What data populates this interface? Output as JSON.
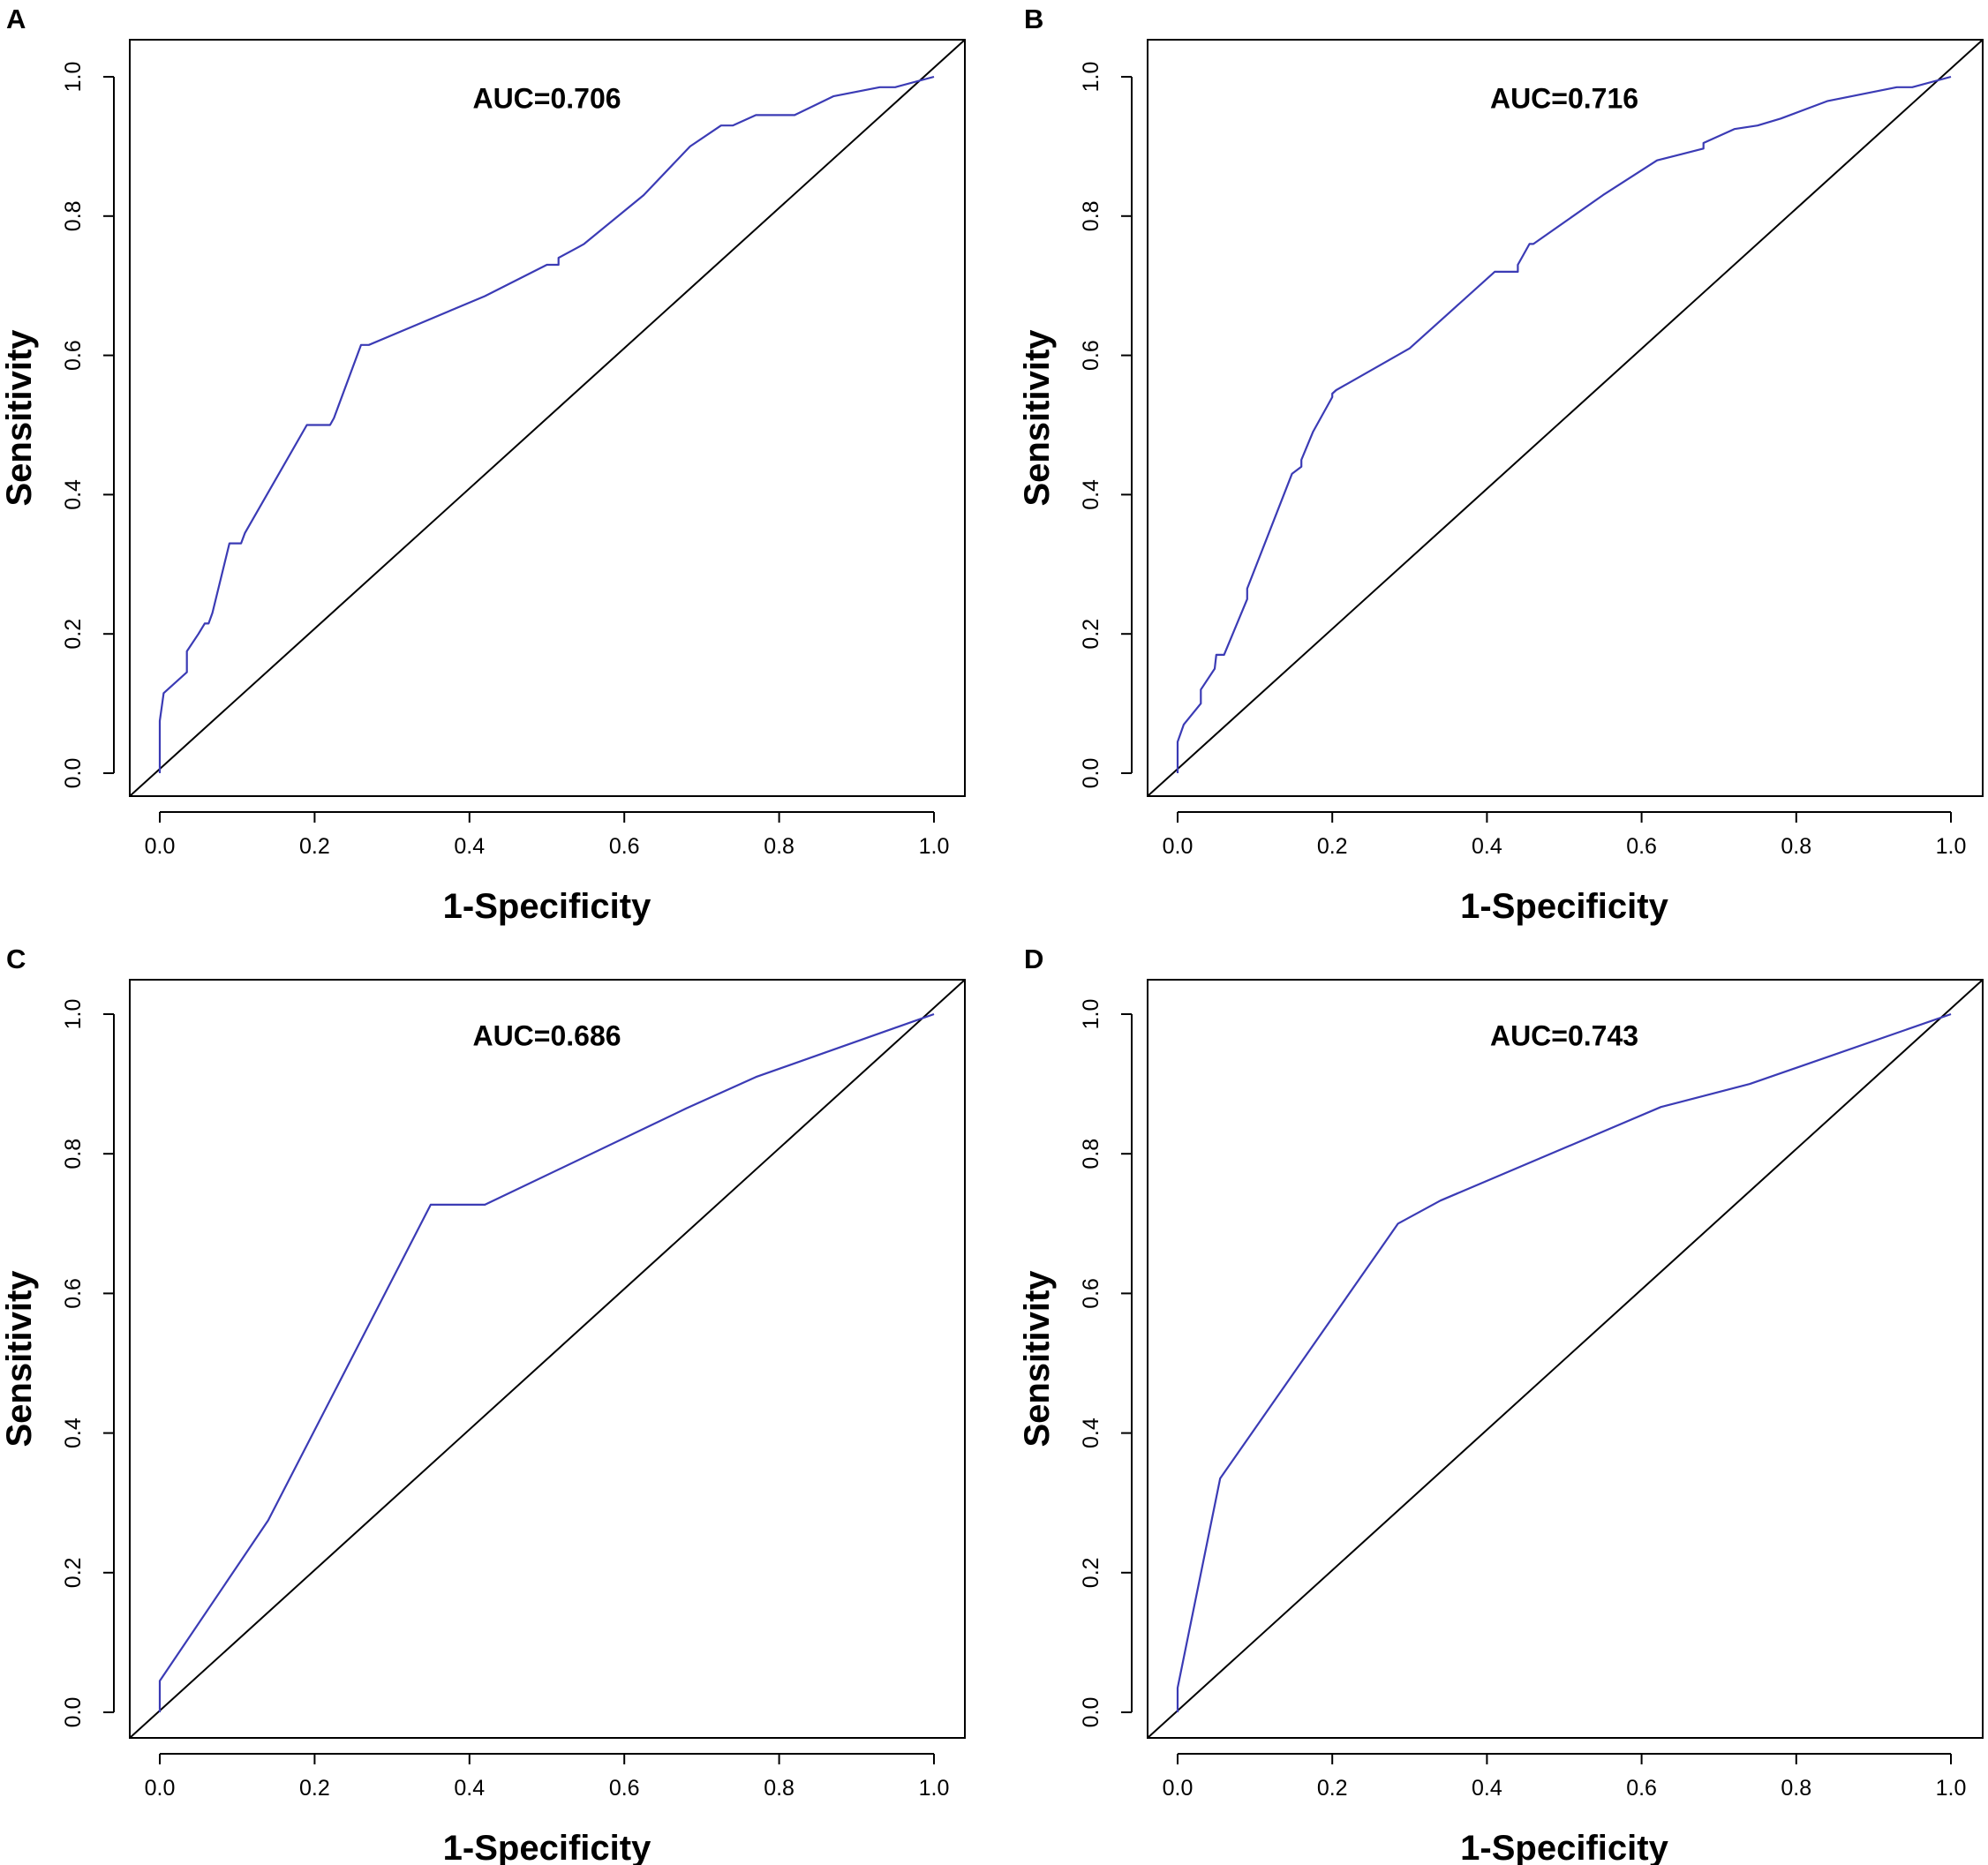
{
  "colors": {
    "roc_line": "#3b3bb5",
    "diagonal": "#000000",
    "axes": "#000000"
  },
  "chart_data": [
    {
      "panel": "A",
      "type": "line",
      "title": "",
      "annotation": "AUC=0.706",
      "xlabel": "1-Specificity",
      "ylabel": "Sensitivity",
      "xlim": [
        0,
        1
      ],
      "ylim": [
        0,
        1
      ],
      "grid": false,
      "xticks": [
        "0.0",
        "0.2",
        "0.4",
        "0.6",
        "0.8",
        "1.0"
      ],
      "yticks": [
        "0.0",
        "0.2",
        "0.4",
        "0.6",
        "0.8",
        "1.0"
      ],
      "series": [
        {
          "name": "ROC",
          "x": [
            0,
            0,
            0.005,
            0.035,
            0.035,
            0.05,
            0.058,
            0.063,
            0.068,
            0.09,
            0.105,
            0.11,
            0.19,
            0.22,
            0.225,
            0.26,
            0.27,
            0.42,
            0.5,
            0.515,
            0.515,
            0.54,
            0.548,
            0.625,
            0.685,
            0.725,
            0.74,
            0.77,
            0.82,
            0.87,
            0.93,
            0.95,
            1.0
          ],
          "y": [
            0,
            0.075,
            0.115,
            0.145,
            0.175,
            0.2,
            0.215,
            0.215,
            0.23,
            0.33,
            0.33,
            0.345,
            0.5,
            0.5,
            0.51,
            0.615,
            0.615,
            0.685,
            0.73,
            0.73,
            0.74,
            0.755,
            0.76,
            0.83,
            0.9,
            0.93,
            0.93,
            0.945,
            0.945,
            0.972,
            0.985,
            0.985,
            1.0
          ]
        },
        {
          "name": "Reference",
          "x": [
            0,
            1
          ],
          "y": [
            0,
            1
          ]
        }
      ]
    },
    {
      "panel": "B",
      "type": "line",
      "title": "",
      "annotation": "AUC=0.716",
      "xlabel": "1-Specificity",
      "ylabel": "Sensitivity",
      "xlim": [
        0,
        1
      ],
      "ylim": [
        0,
        1
      ],
      "grid": false,
      "xticks": [
        "0.0",
        "0.2",
        "0.4",
        "0.6",
        "0.8",
        "1.0"
      ],
      "yticks": [
        "0.0",
        "0.2",
        "0.4",
        "0.6",
        "0.8",
        "1.0"
      ],
      "series": [
        {
          "name": "ROC",
          "x": [
            0,
            0,
            0.008,
            0.03,
            0.03,
            0.048,
            0.05,
            0.06,
            0.09,
            0.09,
            0.148,
            0.148,
            0.16,
            0.16,
            0.175,
            0.2,
            0.2,
            0.205,
            0.3,
            0.35,
            0.41,
            0.44,
            0.44,
            0.455,
            0.46,
            0.55,
            0.62,
            0.68,
            0.68,
            0.72,
            0.75,
            0.78,
            0.84,
            0.93,
            0.95,
            1.0
          ],
          "y": [
            0,
            0.045,
            0.07,
            0.1,
            0.12,
            0.15,
            0.17,
            0.17,
            0.25,
            0.265,
            0.43,
            0.43,
            0.44,
            0.45,
            0.49,
            0.54,
            0.545,
            0.55,
            0.61,
            0.66,
            0.72,
            0.72,
            0.73,
            0.76,
            0.76,
            0.83,
            0.88,
            0.897,
            0.905,
            0.925,
            0.93,
            0.94,
            0.965,
            0.985,
            0.985,
            1.0
          ]
        },
        {
          "name": "Reference",
          "x": [
            0,
            1
          ],
          "y": [
            0,
            1
          ]
        }
      ]
    },
    {
      "panel": "C",
      "type": "line",
      "title": "",
      "annotation": "AUC=0.686",
      "xlabel": "1-Specificity",
      "ylabel": "Sensitivity",
      "xlim": [
        0,
        1
      ],
      "ylim": [
        0,
        1
      ],
      "grid": false,
      "xticks": [
        "0.0",
        "0.2",
        "0.4",
        "0.6",
        "0.8",
        "1.0"
      ],
      "yticks": [
        "0.0",
        "0.2",
        "0.4",
        "0.6",
        "0.8",
        "1.0"
      ],
      "series": [
        {
          "name": "ROC",
          "x": [
            0,
            0,
            0.14,
            0.35,
            0.42,
            0.68,
            0.77,
            1.0
          ],
          "y": [
            0,
            0.045,
            0.275,
            0.727,
            0.727,
            0.865,
            0.91,
            1.0
          ]
        },
        {
          "name": "Reference",
          "x": [
            0,
            1
          ],
          "y": [
            0,
            1
          ]
        }
      ]
    },
    {
      "panel": "D",
      "type": "line",
      "title": "",
      "annotation": "AUC=0.743",
      "xlabel": "1-Specificity",
      "ylabel": "Sensitivity",
      "xlim": [
        0,
        1
      ],
      "ylim": [
        0,
        1
      ],
      "grid": false,
      "xticks": [
        "0.0",
        "0.2",
        "0.4",
        "0.6",
        "0.8",
        "1.0"
      ],
      "yticks": [
        "0.0",
        "0.2",
        "0.4",
        "0.6",
        "0.8",
        "1.0"
      ],
      "series": [
        {
          "name": "ROC",
          "x": [
            0,
            0,
            0.055,
            0.285,
            0.34,
            0.625,
            0.74,
            1.0
          ],
          "y": [
            0,
            0.035,
            0.335,
            0.7,
            0.733,
            0.867,
            0.9,
            1.0
          ]
        },
        {
          "name": "Reference",
          "x": [
            0,
            1
          ],
          "y": [
            0,
            1
          ]
        }
      ]
    }
  ]
}
